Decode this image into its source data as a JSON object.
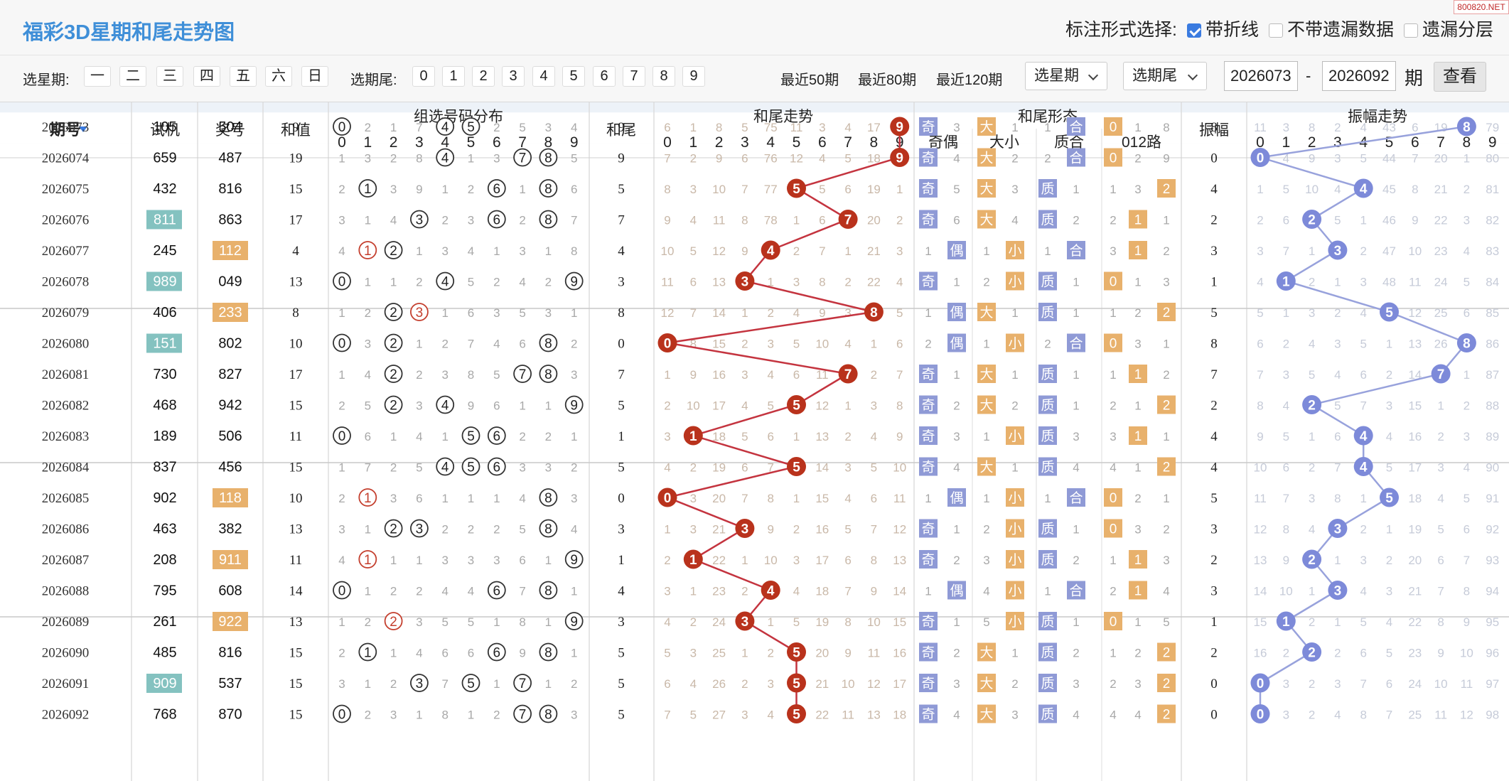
{
  "header": {
    "title": "福彩3D星期和尾走势图",
    "site_mark": "800820.NET",
    "mark_label": "标注形式选择:",
    "options": [
      {
        "label": "带折线",
        "checked": true
      },
      {
        "label": "不带遗漏数据",
        "checked": false
      },
      {
        "label": "遗漏分层",
        "checked": false
      }
    ]
  },
  "controls": {
    "week_label": "选星期:",
    "weekdays": [
      "一",
      "二",
      "三",
      "四",
      "五",
      "六",
      "日"
    ],
    "tail_label": "选期尾:",
    "tails": [
      "0",
      "1",
      "2",
      "3",
      "4",
      "5",
      "6",
      "7",
      "8",
      "9"
    ],
    "recent": [
      "最近50期",
      "最近80期",
      "最近120期"
    ],
    "select_week": "选星期",
    "select_tail": "选期尾",
    "from": "2026073",
    "dash": "-",
    "to": "2026092",
    "period_unit": "期",
    "view": "查看"
  },
  "table": {
    "headers": {
      "issue": "期号",
      "trial": "试机",
      "prize": "奖号",
      "sum": "和值",
      "dist": "组选号码分布",
      "tail": "和尾",
      "trend": "和尾走势",
      "form": "和尾形态",
      "amp": "振幅",
      "amptrend": "振幅走势"
    },
    "form_groups": [
      "奇偶",
      "大小",
      "质合",
      "012路"
    ],
    "digits": [
      "0",
      "1",
      "2",
      "3",
      "4",
      "5",
      "6",
      "7",
      "8",
      "9"
    ],
    "rows": [
      {
        "issue": "2026073",
        "trial": "105",
        "prize": "504",
        "sum": "9",
        "dist": [
          "0",
          "2",
          "1",
          "7",
          "4",
          "5",
          "2",
          "5",
          "3",
          "4"
        ],
        "tail": 9,
        "trend": [
          "6",
          "1",
          "8",
          "5",
          "75",
          "11",
          "3",
          "4",
          "17",
          "9"
        ],
        "form": [
          "奇",
          "3",
          "大",
          "1",
          "1",
          "合",
          "0",
          "1",
          "8"
        ],
        "amp": 8,
        "ampt": [
          "11",
          "3",
          "8",
          "2",
          "4",
          "43",
          "6",
          "19",
          "8",
          "79"
        ]
      },
      {
        "issue": "2026074",
        "trial": "659",
        "prize": "487",
        "sum": "19",
        "dist": [
          "1",
          "3",
          "2",
          "8",
          "4",
          "1",
          "3",
          "7",
          "8",
          "5"
        ],
        "tail": 9,
        "trend": [
          "7",
          "2",
          "9",
          "6",
          "76",
          "12",
          "4",
          "5",
          "18",
          "9"
        ],
        "form": [
          "奇",
          "4",
          "大",
          "2",
          "2",
          "合",
          "0",
          "2",
          "9"
        ],
        "amp": 0,
        "ampt": [
          "0",
          "4",
          "9",
          "3",
          "5",
          "44",
          "7",
          "20",
          "1",
          "80"
        ]
      },
      {
        "issue": "2026075",
        "trial": "432",
        "prize": "816",
        "sum": "15",
        "dist": [
          "2",
          "1",
          "3",
          "9",
          "1",
          "2",
          "6",
          "1",
          "8",
          "6"
        ],
        "tail": 5,
        "trend": [
          "8",
          "3",
          "10",
          "7",
          "77",
          "5",
          "5",
          "6",
          "19",
          "1"
        ],
        "form": [
          "奇",
          "5",
          "大",
          "3",
          "质",
          "1",
          "1",
          "3",
          "2"
        ],
        "amp": 4,
        "ampt": [
          "1",
          "5",
          "10",
          "4",
          "4",
          "45",
          "8",
          "21",
          "2",
          "81"
        ]
      },
      {
        "issue": "2026076",
        "trial": "811",
        "prize": "863",
        "sum": "17",
        "dist": [
          "3",
          "1",
          "4",
          "3",
          "2",
          "3",
          "6",
          "2",
          "8",
          "7"
        ],
        "tail": 7,
        "trend": [
          "9",
          "4",
          "11",
          "8",
          "78",
          "1",
          "6",
          "7",
          "20",
          "2"
        ],
        "form": [
          "奇",
          "6",
          "大",
          "4",
          "质",
          "2",
          "2",
          "1",
          "1"
        ],
        "amp": 2,
        "ampt": [
          "2",
          "6",
          "2",
          "5",
          "1",
          "46",
          "9",
          "22",
          "3",
          "82"
        ]
      },
      {
        "issue": "2026077",
        "trial": "245",
        "prize": "112",
        "sum": "4",
        "dist": [
          "4",
          "1",
          "2",
          "1",
          "3",
          "4",
          "1",
          "3",
          "1",
          "8"
        ],
        "tail": 4,
        "trend": [
          "10",
          "5",
          "12",
          "9",
          "4",
          "2",
          "7",
          "1",
          "21",
          "3"
        ],
        "form": [
          "1",
          "偶",
          "1",
          "小",
          "1",
          "合",
          "3",
          "1",
          "2"
        ],
        "amp": 3,
        "ampt": [
          "3",
          "7",
          "1",
          "3",
          "2",
          "47",
          "10",
          "23",
          "4",
          "83"
        ]
      },
      {
        "issue": "2026078",
        "trial": "989",
        "prize": "049",
        "sum": "13",
        "dist": [
          "0",
          "1",
          "1",
          "2",
          "4",
          "5",
          "2",
          "4",
          "2",
          "9"
        ],
        "tail": 3,
        "trend": [
          "11",
          "6",
          "13",
          "3",
          "1",
          "3",
          "8",
          "2",
          "22",
          "4"
        ],
        "form": [
          "奇",
          "1",
          "2",
          "小",
          "质",
          "1",
          "0",
          "1",
          "3"
        ],
        "amp": 1,
        "ampt": [
          "4",
          "1",
          "2",
          "1",
          "3",
          "48",
          "11",
          "24",
          "5",
          "84"
        ]
      },
      {
        "issue": "2026079",
        "trial": "406",
        "prize": "233",
        "sum": "8",
        "dist": [
          "1",
          "2",
          "2",
          "3",
          "1",
          "6",
          "3",
          "5",
          "3",
          "1"
        ],
        "tail": 8,
        "trend": [
          "12",
          "7",
          "14",
          "1",
          "2",
          "4",
          "9",
          "3",
          "8",
          "5"
        ],
        "form": [
          "1",
          "偶",
          "大",
          "1",
          "质",
          "1",
          "1",
          "2",
          "2"
        ],
        "amp": 5,
        "ampt": [
          "5",
          "1",
          "3",
          "2",
          "4",
          "5",
          "12",
          "25",
          "6",
          "85"
        ]
      },
      {
        "issue": "2026080",
        "trial": "151",
        "prize": "802",
        "sum": "10",
        "dist": [
          "0",
          "3",
          "2",
          "1",
          "2",
          "7",
          "4",
          "6",
          "8",
          "2"
        ],
        "tail": 0,
        "trend": [
          "0",
          "8",
          "15",
          "2",
          "3",
          "5",
          "10",
          "4",
          "1",
          "6"
        ],
        "form": [
          "2",
          "偶",
          "1",
          "小",
          "2",
          "合",
          "0",
          "3",
          "1"
        ],
        "amp": 8,
        "ampt": [
          "6",
          "2",
          "4",
          "3",
          "5",
          "1",
          "13",
          "26",
          "8",
          "86"
        ]
      },
      {
        "issue": "2026081",
        "trial": "730",
        "prize": "827",
        "sum": "17",
        "dist": [
          "1",
          "4",
          "2",
          "2",
          "3",
          "8",
          "5",
          "7",
          "8",
          "3"
        ],
        "tail": 7,
        "trend": [
          "1",
          "9",
          "16",
          "3",
          "4",
          "6",
          "11",
          "7",
          "2",
          "7"
        ],
        "form": [
          "奇",
          "1",
          "大",
          "1",
          "质",
          "1",
          "1",
          "1",
          "2"
        ],
        "amp": 7,
        "ampt": [
          "7",
          "3",
          "5",
          "4",
          "6",
          "2",
          "14",
          "7",
          "1",
          "87"
        ]
      },
      {
        "issue": "2026082",
        "trial": "468",
        "prize": "942",
        "sum": "15",
        "dist": [
          "2",
          "5",
          "2",
          "3",
          "4",
          "9",
          "6",
          "1",
          "1",
          "9"
        ],
        "tail": 5,
        "trend": [
          "2",
          "10",
          "17",
          "4",
          "5",
          "5",
          "12",
          "1",
          "3",
          "8"
        ],
        "form": [
          "奇",
          "2",
          "大",
          "2",
          "质",
          "1",
          "2",
          "1",
          "2"
        ],
        "amp": 2,
        "ampt": [
          "8",
          "4",
          "2",
          "5",
          "7",
          "3",
          "15",
          "1",
          "2",
          "88"
        ]
      },
      {
        "issue": "2026083",
        "trial": "189",
        "prize": "506",
        "sum": "11",
        "dist": [
          "0",
          "6",
          "1",
          "4",
          "1",
          "5",
          "6",
          "2",
          "2",
          "1"
        ],
        "tail": 1,
        "trend": [
          "3",
          "1",
          "18",
          "5",
          "6",
          "1",
          "13",
          "2",
          "4",
          "9"
        ],
        "form": [
          "奇",
          "3",
          "1",
          "小",
          "质",
          "3",
          "3",
          "1",
          "1"
        ],
        "amp": 4,
        "ampt": [
          "9",
          "5",
          "1",
          "6",
          "4",
          "4",
          "16",
          "2",
          "3",
          "89"
        ]
      },
      {
        "issue": "2026084",
        "trial": "837",
        "prize": "456",
        "sum": "15",
        "dist": [
          "1",
          "7",
          "2",
          "5",
          "4",
          "5",
          "6",
          "3",
          "3",
          "2"
        ],
        "tail": 5,
        "trend": [
          "4",
          "2",
          "19",
          "6",
          "7",
          "5",
          "14",
          "3",
          "5",
          "10"
        ],
        "form": [
          "奇",
          "4",
          "大",
          "1",
          "质",
          "4",
          "4",
          "1",
          "2"
        ],
        "amp": 4,
        "ampt": [
          "10",
          "6",
          "2",
          "7",
          "4",
          "5",
          "17",
          "3",
          "4",
          "90"
        ]
      },
      {
        "issue": "2026085",
        "trial": "902",
        "prize": "118",
        "sum": "10",
        "dist": [
          "2",
          "1",
          "3",
          "6",
          "1",
          "1",
          "1",
          "4",
          "8",
          "3"
        ],
        "tail": 0,
        "trend": [
          "0",
          "3",
          "20",
          "7",
          "8",
          "1",
          "15",
          "4",
          "6",
          "11"
        ],
        "form": [
          "1",
          "偶",
          "1",
          "小",
          "1",
          "合",
          "0",
          "2",
          "1"
        ],
        "amp": 5,
        "ampt": [
          "11",
          "7",
          "3",
          "8",
          "1",
          "5",
          "18",
          "4",
          "5",
          "91"
        ]
      },
      {
        "issue": "2026086",
        "trial": "463",
        "prize": "382",
        "sum": "13",
        "dist": [
          "3",
          "1",
          "2",
          "3",
          "2",
          "2",
          "2",
          "5",
          "8",
          "4"
        ],
        "tail": 3,
        "trend": [
          "1",
          "3",
          "21",
          "3",
          "9",
          "2",
          "16",
          "5",
          "7",
          "12"
        ],
        "form": [
          "奇",
          "1",
          "2",
          "小",
          "质",
          "1",
          "0",
          "3",
          "2"
        ],
        "amp": 3,
        "ampt": [
          "12",
          "8",
          "4",
          "3",
          "2",
          "1",
          "19",
          "5",
          "6",
          "92"
        ]
      },
      {
        "issue": "2026087",
        "trial": "208",
        "prize": "911",
        "sum": "11",
        "dist": [
          "4",
          "1",
          "1",
          "1",
          "3",
          "3",
          "3",
          "6",
          "1",
          "9"
        ],
        "tail": 1,
        "trend": [
          "2",
          "1",
          "22",
          "1",
          "10",
          "3",
          "17",
          "6",
          "8",
          "13"
        ],
        "form": [
          "奇",
          "2",
          "3",
          "小",
          "质",
          "2",
          "1",
          "1",
          "3"
        ],
        "amp": 2,
        "ampt": [
          "13",
          "9",
          "2",
          "1",
          "3",
          "2",
          "20",
          "6",
          "7",
          "93"
        ]
      },
      {
        "issue": "2026088",
        "trial": "795",
        "prize": "608",
        "sum": "14",
        "dist": [
          "0",
          "1",
          "2",
          "2",
          "4",
          "4",
          "6",
          "7",
          "8",
          "1"
        ],
        "tail": 4,
        "trend": [
          "3",
          "1",
          "23",
          "2",
          "4",
          "4",
          "18",
          "7",
          "9",
          "14"
        ],
        "form": [
          "1",
          "偶",
          "4",
          "小",
          "1",
          "合",
          "2",
          "1",
          "4"
        ],
        "amp": 3,
        "ampt": [
          "14",
          "10",
          "1",
          "3",
          "4",
          "3",
          "21",
          "7",
          "8",
          "94"
        ]
      },
      {
        "issue": "2026089",
        "trial": "261",
        "prize": "922",
        "sum": "13",
        "dist": [
          "1",
          "2",
          "2",
          "3",
          "5",
          "5",
          "1",
          "8",
          "1",
          "9"
        ],
        "tail": 3,
        "trend": [
          "4",
          "2",
          "24",
          "3",
          "1",
          "5",
          "19",
          "8",
          "10",
          "15"
        ],
        "form": [
          "奇",
          "1",
          "5",
          "小",
          "质",
          "1",
          "0",
          "1",
          "5"
        ],
        "amp": 1,
        "ampt": [
          "15",
          "1",
          "2",
          "1",
          "5",
          "4",
          "22",
          "8",
          "9",
          "95"
        ]
      },
      {
        "issue": "2026090",
        "trial": "485",
        "prize": "816",
        "sum": "15",
        "dist": [
          "2",
          "1",
          "1",
          "4",
          "6",
          "6",
          "6",
          "9",
          "8",
          "1"
        ],
        "tail": 5,
        "trend": [
          "5",
          "3",
          "25",
          "1",
          "2",
          "5",
          "20",
          "9",
          "11",
          "16"
        ],
        "form": [
          "奇",
          "2",
          "大",
          "1",
          "质",
          "2",
          "1",
          "2",
          "2"
        ],
        "amp": 2,
        "ampt": [
          "16",
          "2",
          "2",
          "2",
          "6",
          "5",
          "23",
          "9",
          "10",
          "96"
        ]
      },
      {
        "issue": "2026091",
        "trial": "909",
        "prize": "537",
        "sum": "15",
        "dist": [
          "3",
          "1",
          "2",
          "3",
          "7",
          "5",
          "1",
          "7",
          "1",
          "2"
        ],
        "tail": 5,
        "trend": [
          "6",
          "4",
          "26",
          "2",
          "3",
          "5",
          "21",
          "10",
          "12",
          "17"
        ],
        "form": [
          "奇",
          "3",
          "大",
          "2",
          "质",
          "3",
          "2",
          "3",
          "2"
        ],
        "amp": 0,
        "ampt": [
          "0",
          "3",
          "2",
          "3",
          "7",
          "6",
          "24",
          "10",
          "11",
          "97"
        ]
      },
      {
        "issue": "2026092",
        "trial": "768",
        "prize": "870",
        "sum": "15",
        "dist": [
          "0",
          "2",
          "3",
          "1",
          "8",
          "1",
          "2",
          "7",
          "8",
          "3"
        ],
        "tail": 5,
        "trend": [
          "7",
          "5",
          "27",
          "3",
          "4",
          "5",
          "22",
          "11",
          "13",
          "18"
        ],
        "form": [
          "奇",
          "4",
          "大",
          "3",
          "质",
          "4",
          "4",
          "4",
          "2"
        ],
        "amp": 0,
        "ampt": [
          "0",
          "3",
          "2",
          "4",
          "8",
          "7",
          "25",
          "11",
          "12",
          "98"
        ]
      }
    ]
  },
  "colors": {
    "blue_title": "#3f8fd8",
    "red_ball": "#b9321c",
    "blue_ball": "#7d8ad9",
    "teal": "#84c2c0",
    "orange": "#e8b16c",
    "purple": "#8f9ad6",
    "grid": "#dddddd"
  }
}
